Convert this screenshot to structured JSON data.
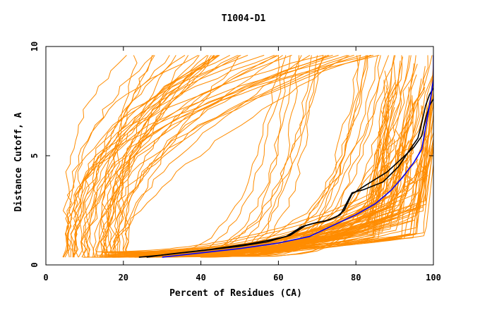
{
  "chart_data": {
    "type": "line",
    "title": "T1004-D1",
    "xlabel": "Percent of Residues (CA)",
    "ylabel": "Distance Cutoff, A",
    "xlim": [
      0,
      100
    ],
    "ylim": [
      0,
      10
    ],
    "x_ticks": [
      "0",
      "20",
      "40",
      "60",
      "80",
      "100"
    ],
    "y_ticks": [
      "0",
      "5",
      "10"
    ],
    "grid": false,
    "legend": "none",
    "colors": {
      "group_a": "#ff8c00",
      "group_b": "#000000",
      "group_c": "#0000ff"
    },
    "series": [
      {
        "color": "#000000",
        "points": [
          [
            24,
            0.35
          ],
          [
            30,
            0.45
          ],
          [
            40,
            0.65
          ],
          [
            50,
            0.85
          ],
          [
            57,
            1.05
          ],
          [
            63,
            1.35
          ],
          [
            67,
            1.8
          ],
          [
            70,
            1.95
          ],
          [
            73,
            2.05
          ],
          [
            76,
            2.3
          ],
          [
            79,
            3.3
          ],
          [
            82,
            3.45
          ],
          [
            87,
            3.8
          ],
          [
            91,
            4.5
          ],
          [
            94,
            5.3
          ],
          [
            96,
            5.8
          ],
          [
            97,
            6.5
          ],
          [
            98,
            7.3
          ],
          [
            99,
            7.8
          ],
          [
            100,
            8.1
          ]
        ]
      },
      {
        "color": "#000000",
        "points": [
          [
            26,
            0.35
          ],
          [
            32,
            0.5
          ],
          [
            42,
            0.7
          ],
          [
            52,
            0.95
          ],
          [
            58,
            1.15
          ],
          [
            62,
            1.3
          ],
          [
            66,
            1.75
          ],
          [
            69,
            1.9
          ],
          [
            72,
            2.0
          ],
          [
            75,
            2.2
          ],
          [
            77,
            2.5
          ],
          [
            79,
            3.25
          ],
          [
            83,
            3.7
          ],
          [
            88,
            4.25
          ],
          [
            92,
            4.9
          ],
          [
            95,
            5.4
          ],
          [
            97,
            5.9
          ],
          [
            98,
            6.7
          ],
          [
            99,
            7.3
          ],
          [
            100,
            7.6
          ]
        ]
      },
      {
        "color": "#0000ff",
        "points": [
          [
            30,
            0.35
          ],
          [
            40,
            0.55
          ],
          [
            50,
            0.75
          ],
          [
            60,
            1.0
          ],
          [
            68,
            1.3
          ],
          [
            74,
            1.8
          ],
          [
            80,
            2.3
          ],
          [
            85,
            2.8
          ],
          [
            89,
            3.4
          ],
          [
            92,
            4.0
          ],
          [
            95,
            4.7
          ],
          [
            97,
            5.3
          ],
          [
            98,
            6.3
          ],
          [
            99,
            7.3
          ],
          [
            100,
            8.5
          ],
          [
            100,
            9.6
          ]
        ]
      }
    ]
  }
}
